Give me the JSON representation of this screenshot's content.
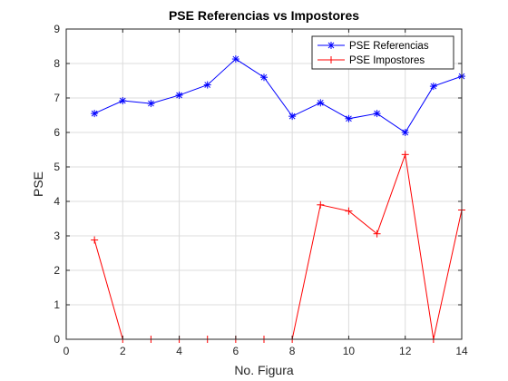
{
  "chart_data": {
    "type": "line",
    "title": "PSE Referencias vs Impostores",
    "xlabel": "No. Figura",
    "ylabel": "PSE",
    "xlim": [
      0,
      14
    ],
    "ylim": [
      0,
      9
    ],
    "xticks": [
      0,
      2,
      4,
      6,
      8,
      10,
      12,
      14
    ],
    "yticks": [
      0,
      1,
      2,
      3,
      4,
      5,
      6,
      7,
      8,
      9
    ],
    "grid": true,
    "legend_position": "top-right",
    "x": [
      1,
      2,
      3,
      4,
      5,
      6,
      7,
      8,
      9,
      10,
      11,
      12,
      13,
      14
    ],
    "series": [
      {
        "name": "PSE Referencias",
        "color": "#0000ff",
        "marker": "asterisk",
        "values": [
          6.55,
          6.92,
          6.84,
          7.08,
          7.38,
          8.13,
          7.6,
          6.47,
          6.86,
          6.4,
          6.55,
          6.0,
          7.34,
          7.63
        ]
      },
      {
        "name": "PSE Impostores",
        "color": "#ff0000",
        "marker": "plus",
        "values": [
          2.88,
          0,
          0,
          0,
          0,
          0,
          0,
          0,
          3.9,
          3.72,
          3.06,
          5.36,
          0,
          3.75
        ]
      }
    ]
  }
}
